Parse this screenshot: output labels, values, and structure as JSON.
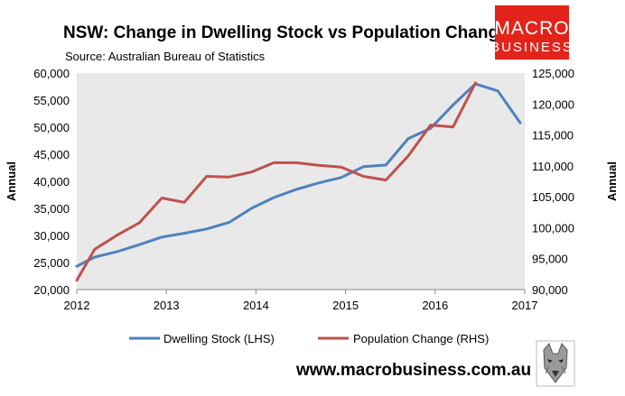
{
  "chart_data": {
    "type": "line",
    "title": "NSW: Change in Dwelling Stock vs Population Change",
    "subtitle": "Source: Australian Bureau of Statistics",
    "x": [
      2012.0,
      2012.25,
      2012.5,
      2012.75,
      2013.0,
      2013.25,
      2013.5,
      2013.75,
      2014.0,
      2014.25,
      2014.5,
      2014.75,
      2015.0,
      2015.25,
      2015.5,
      2015.75,
      2016.0,
      2016.25,
      2016.5,
      2016.75,
      2017.0
    ],
    "x_tick_labels": [
      "2012",
      "2013",
      "2014",
      "2015",
      "2016",
      "2017"
    ],
    "x_tick_values": [
      2012,
      2013,
      2014,
      2015,
      2016,
      2017
    ],
    "xlim": [
      2012,
      2017
    ],
    "left_axis": {
      "label": "Annual",
      "ylim": [
        20000,
        60000
      ],
      "ticks": [
        "20,000",
        "25,000",
        "30,000",
        "35,000",
        "40,000",
        "45,000",
        "50,000",
        "55,000",
        "60,000"
      ],
      "tick_values": [
        20000,
        25000,
        30000,
        35000,
        40000,
        45000,
        50000,
        55000,
        60000
      ]
    },
    "right_axis": {
      "label": "Annual",
      "ylim": [
        90000,
        125000
      ],
      "ticks": [
        "90,000",
        "95,000",
        "100,000",
        "105,000",
        "110,000",
        "115,000",
        "120,000",
        "125,000"
      ],
      "tick_values": [
        90000,
        95000,
        100000,
        105000,
        110000,
        115000,
        120000,
        125000
      ]
    },
    "series": [
      {
        "name": "Dwelling Stock (LHS)",
        "axis": "left",
        "color": "#4f81bd",
        "x": [
          2012.0,
          2012.2,
          2012.45,
          2012.7,
          2012.95,
          2013.2,
          2013.45,
          2013.7,
          2013.95,
          2014.2,
          2014.45,
          2014.7,
          2014.95,
          2015.2,
          2015.45,
          2015.7,
          2015.95,
          2016.2,
          2016.45,
          2016.7,
          2016.95
        ],
        "values": [
          24300,
          26000,
          27000,
          28300,
          29700,
          30400,
          31200,
          32400,
          35000,
          37000,
          38500,
          39700,
          40700,
          42700,
          43000,
          47900,
          49800,
          54100,
          58000,
          56700,
          50800
        ]
      },
      {
        "name": "Population Change (RHS)",
        "axis": "right",
        "color": "#c0504d",
        "x": [
          2012.0,
          2012.2,
          2012.45,
          2012.7,
          2012.95,
          2013.2,
          2013.45,
          2013.7,
          2013.95,
          2014.2,
          2014.45,
          2014.7,
          2014.95,
          2015.2,
          2015.45,
          2015.7,
          2015.95,
          2016.2,
          2016.45
        ],
        "values": [
          91500,
          96500,
          98800,
          100800,
          104800,
          104100,
          108300,
          108200,
          109000,
          110500,
          110500,
          110100,
          109800,
          108300,
          107700,
          111600,
          116600,
          116300,
          123400
        ]
      }
    ],
    "legend": [
      "Dwelling Stock (LHS)",
      "Population Change (RHS)"
    ],
    "legend_position": "bottom",
    "grid": false
  },
  "logo": {
    "line1": "MACRO",
    "line2": "BUSINESS",
    "bg": "#e2231a"
  },
  "footer": {
    "url": "www.macrobusiness.com.au"
  },
  "colors": {
    "plot_bg": "#e9e9e9",
    "axis": "#888888"
  }
}
